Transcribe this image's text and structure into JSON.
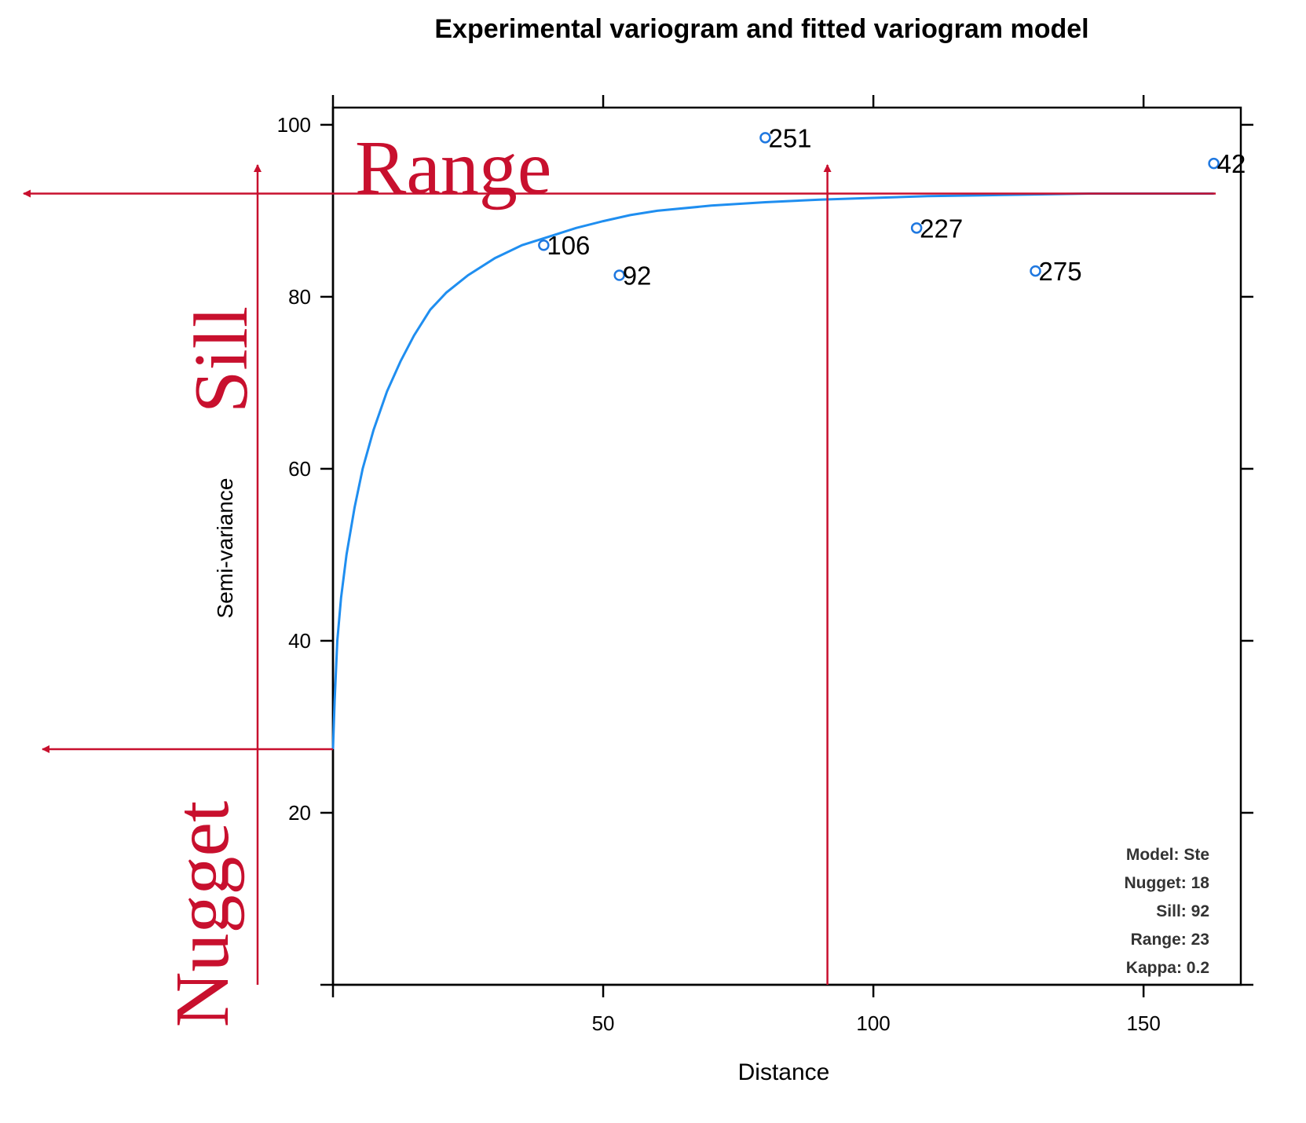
{
  "chart_data": {
    "type": "scatter",
    "title": "Experimental variogram and fitted variogram model",
    "xlabel": "Distance",
    "ylabel": "Semi-variance",
    "xlim": [
      0,
      168
    ],
    "ylim": [
      0,
      102
    ],
    "x_ticks": [
      50,
      100,
      150
    ],
    "y_ticks": [
      20,
      40,
      60,
      80,
      100
    ],
    "grid": false,
    "points": [
      {
        "x": 39,
        "y": 86,
        "label": "106"
      },
      {
        "x": 53,
        "y": 82.5,
        "label": "92"
      },
      {
        "x": 80,
        "y": 98.5,
        "label": "251"
      },
      {
        "x": 108,
        "y": 88,
        "label": "227"
      },
      {
        "x": 130,
        "y": 83,
        "label": "275"
      },
      {
        "x": 163,
        "y": 95.5,
        "label": "42"
      }
    ],
    "model_curve": [
      [
        0,
        27.4
      ],
      [
        0.3,
        33
      ],
      [
        0.8,
        40
      ],
      [
        1.5,
        45
      ],
      [
        2.5,
        50
      ],
      [
        4,
        55.5
      ],
      [
        5.5,
        60
      ],
      [
        7.5,
        64.5
      ],
      [
        10,
        69
      ],
      [
        12.5,
        72.5
      ],
      [
        15,
        75.5
      ],
      [
        18,
        78.5
      ],
      [
        21,
        80.5
      ],
      [
        25,
        82.5
      ],
      [
        30,
        84.5
      ],
      [
        35,
        86
      ],
      [
        40,
        87
      ],
      [
        45,
        88
      ],
      [
        50,
        88.8
      ],
      [
        55,
        89.5
      ],
      [
        60,
        90
      ],
      [
        70,
        90.6
      ],
      [
        80,
        91
      ],
      [
        90,
        91.3
      ],
      [
        100,
        91.5
      ],
      [
        110,
        91.7
      ],
      [
        120,
        91.8
      ],
      [
        130,
        91.9
      ],
      [
        140,
        92
      ],
      [
        150,
        92
      ],
      [
        160,
        92
      ],
      [
        163,
        92
      ]
    ],
    "model_info": [
      "Model: Ste",
      "Nugget: 18",
      "Sill: 92",
      "Range: 23",
      "Kappa: 0.2"
    ],
    "colors": {
      "points": "#1f78e0",
      "curve": "#1f8ef0",
      "annotation": "#c8102e",
      "axis": "#000000"
    }
  },
  "annotations": {
    "range_label": "Range",
    "sill_label": "Sill",
    "nugget_label": "Nugget",
    "sill_level": 92,
    "nugget_level": 27.4,
    "range_distance": 91.5
  }
}
